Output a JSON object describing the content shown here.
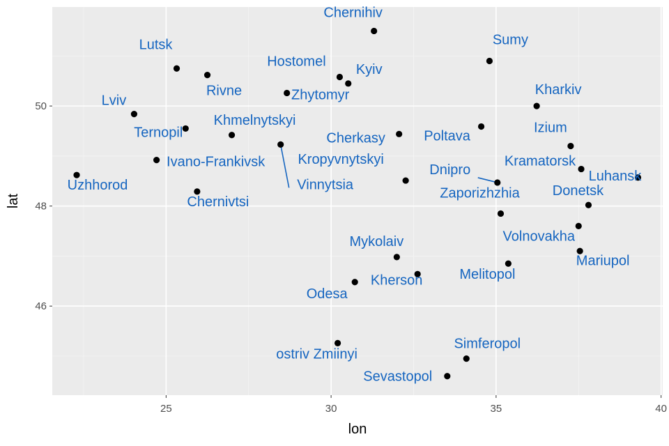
{
  "chart_data": {
    "type": "scatter",
    "title": "",
    "xlabel": "lon",
    "ylabel": "lat",
    "xlim": [
      21.55,
      40.05
    ],
    "ylim": [
      44.22,
      51.98
    ],
    "x_ticks": [
      25,
      30,
      35,
      40
    ],
    "y_ticks": [
      46,
      48,
      50
    ],
    "grid": true,
    "colors": {
      "panel": "#ebebeb",
      "grid_major": "#ffffff",
      "grid_minor": "#f5f5f5",
      "point": "#000000",
      "label": "#1565c0",
      "tick": "#333333"
    },
    "points": [
      {
        "name": "Chernihiv",
        "x": 31.3,
        "y": 51.5
      },
      {
        "name": "Sumy",
        "x": 34.8,
        "y": 50.9
      },
      {
        "name": "Lutsk",
        "x": 25.32,
        "y": 50.75
      },
      {
        "name": "Rivne",
        "x": 26.25,
        "y": 50.62
      },
      {
        "name": "Hostomel",
        "x": 30.26,
        "y": 50.58
      },
      {
        "name": "Kyiv",
        "x": 30.52,
        "y": 50.45
      },
      {
        "name": "Zhytomyr",
        "x": 28.66,
        "y": 50.26
      },
      {
        "name": "Kharkiv",
        "x": 36.23,
        "y": 50.0
      },
      {
        "name": "Lviv",
        "x": 24.03,
        "y": 49.84
      },
      {
        "name": "Poltava",
        "x": 34.55,
        "y": 49.59
      },
      {
        "name": "Ternopil",
        "x": 25.59,
        "y": 49.55
      },
      {
        "name": "Cherkasy",
        "x": 32.06,
        "y": 49.44
      },
      {
        "name": "Khmelnytskyi",
        "x": 26.99,
        "y": 49.42
      },
      {
        "name": "Vinnytsia",
        "x": 28.47,
        "y": 49.23
      },
      {
        "name": "Izium",
        "x": 37.26,
        "y": 49.2
      },
      {
        "name": "Ivano-Frankivsk",
        "x": 24.71,
        "y": 48.92
      },
      {
        "name": "Kramatorsk",
        "x": 37.58,
        "y": 48.74
      },
      {
        "name": "Uzhhorod",
        "x": 22.29,
        "y": 48.62
      },
      {
        "name": "Luhansk",
        "x": 39.3,
        "y": 48.57
      },
      {
        "name": "Kropyvnytskyi",
        "x": 32.26,
        "y": 48.51
      },
      {
        "name": "Dnipro",
        "x": 35.04,
        "y": 48.47
      },
      {
        "name": "Chernivtsi",
        "x": 25.94,
        "y": 48.29
      },
      {
        "name": "Donetsk",
        "x": 37.8,
        "y": 48.02
      },
      {
        "name": "Zaporizhzhia",
        "x": 35.14,
        "y": 47.85
      },
      {
        "name": "Volnovakha",
        "x": 37.5,
        "y": 47.6
      },
      {
        "name": "Mariupol",
        "x": 37.54,
        "y": 47.1
      },
      {
        "name": "Mykolaiv",
        "x": 31.99,
        "y": 46.98
      },
      {
        "name": "Melitopol",
        "x": 35.37,
        "y": 46.85
      },
      {
        "name": "Kherson",
        "x": 32.62,
        "y": 46.64
      },
      {
        "name": "Odesa",
        "x": 30.72,
        "y": 46.48
      },
      {
        "name": "ostriv Zmiinyi",
        "x": 30.2,
        "y": 45.26
      },
      {
        "name": "Simferopol",
        "x": 34.1,
        "y": 44.95
      },
      {
        "name": "Sevastopol",
        "x": 33.52,
        "y": 44.6
      }
    ]
  }
}
